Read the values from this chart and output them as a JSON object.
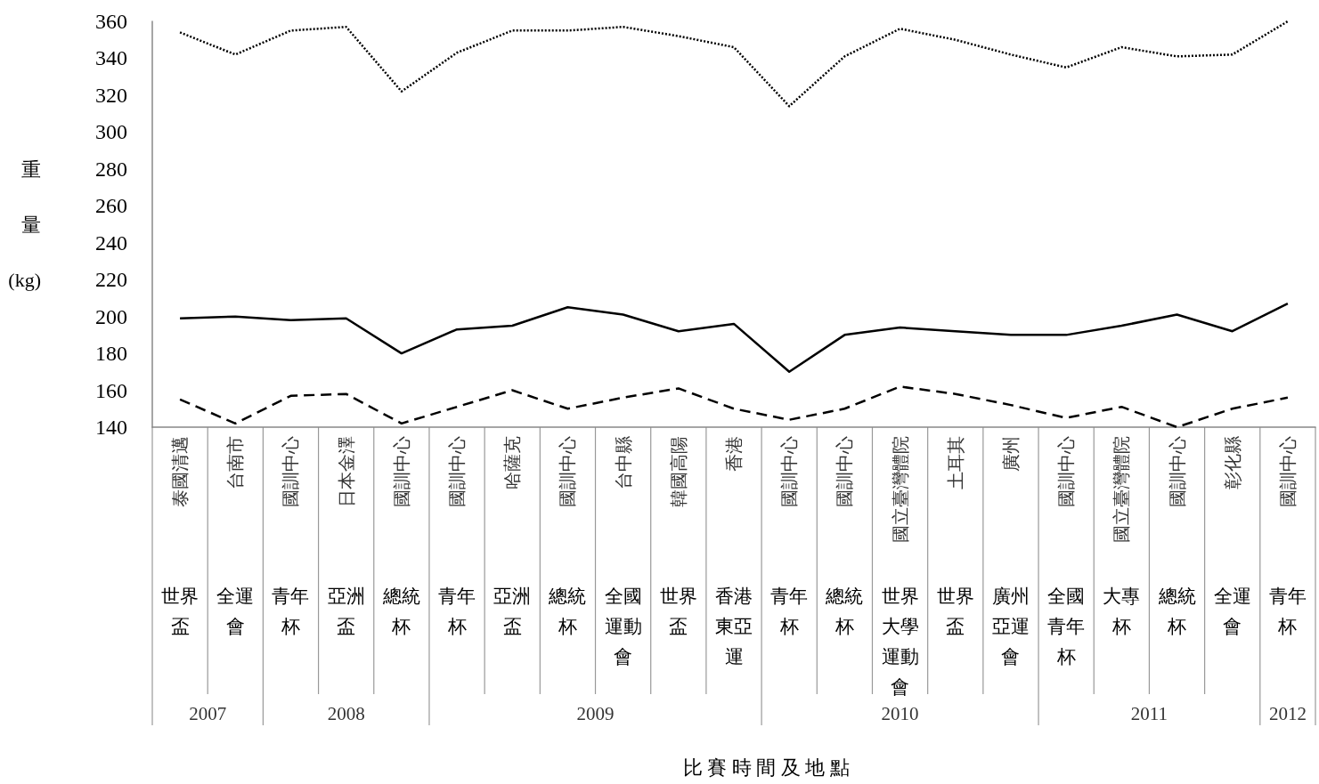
{
  "chart_data": {
    "type": "line",
    "ylabel": "重量(kg)",
    "categories": [
      "泰國清邁",
      "台南市",
      "國訓中心",
      "日本金澤",
      "國訓中心",
      "國訓中心",
      "哈薩克",
      "國訓中心",
      "台中縣",
      "韓國高陽",
      "香港",
      "國訓中心",
      "國訓中心",
      "國立臺灣體院",
      "土耳其",
      "廣州",
      "國訓中心",
      "國立臺灣體院",
      "國訓中心",
      "彰化縣",
      "國訓中心"
    ],
    "series": [
      {
        "color": "#000000",
        "line_style": "dotted",
        "values": [
          354,
          342,
          355,
          357,
          322,
          343,
          355,
          355,
          357,
          352,
          346,
          314,
          341,
          356,
          350,
          342,
          335,
          346,
          341,
          342,
          360
        ]
      },
      {
        "color": "#000000",
        "line_style": "solid",
        "values": [
          199,
          200,
          198,
          199,
          180,
          193,
          195,
          205,
          201,
          192,
          196,
          170,
          190,
          194,
          192,
          190,
          190,
          195,
          201,
          192,
          207
        ]
      },
      {
        "color": "#000000",
        "line_style": "dashed",
        "values": [
          155,
          142,
          157,
          158,
          142,
          151,
          160,
          150,
          156,
          161,
          150,
          144,
          150,
          162,
          158,
          152,
          145,
          151,
          140,
          150,
          156
        ]
      }
    ],
    "ylim": [
      140,
      360
    ],
    "yticks": [
      140,
      160,
      180,
      200,
      220,
      240,
      260,
      280,
      300,
      320,
      340,
      360
    ],
    "grid": false,
    "marker": "none",
    "annotations": [
      "世界盃",
      "全運會",
      "青年杯",
      "亞洲盃",
      "總統杯",
      "青年杯",
      "亞洲盃",
      "總統杯",
      "全國運動會",
      "世界盃",
      "香港東亞運",
      "青年杯",
      "總統杯",
      "世界大學運動會",
      "世界盃",
      "廣州亞運會",
      "全國青年杯",
      "大專杯",
      "總統杯",
      "全運會",
      "青年杯",
      "2007",
      "2008",
      "2009",
      "2010",
      "2011",
      "2012",
      "比賽時間及地點"
    ]
  }
}
